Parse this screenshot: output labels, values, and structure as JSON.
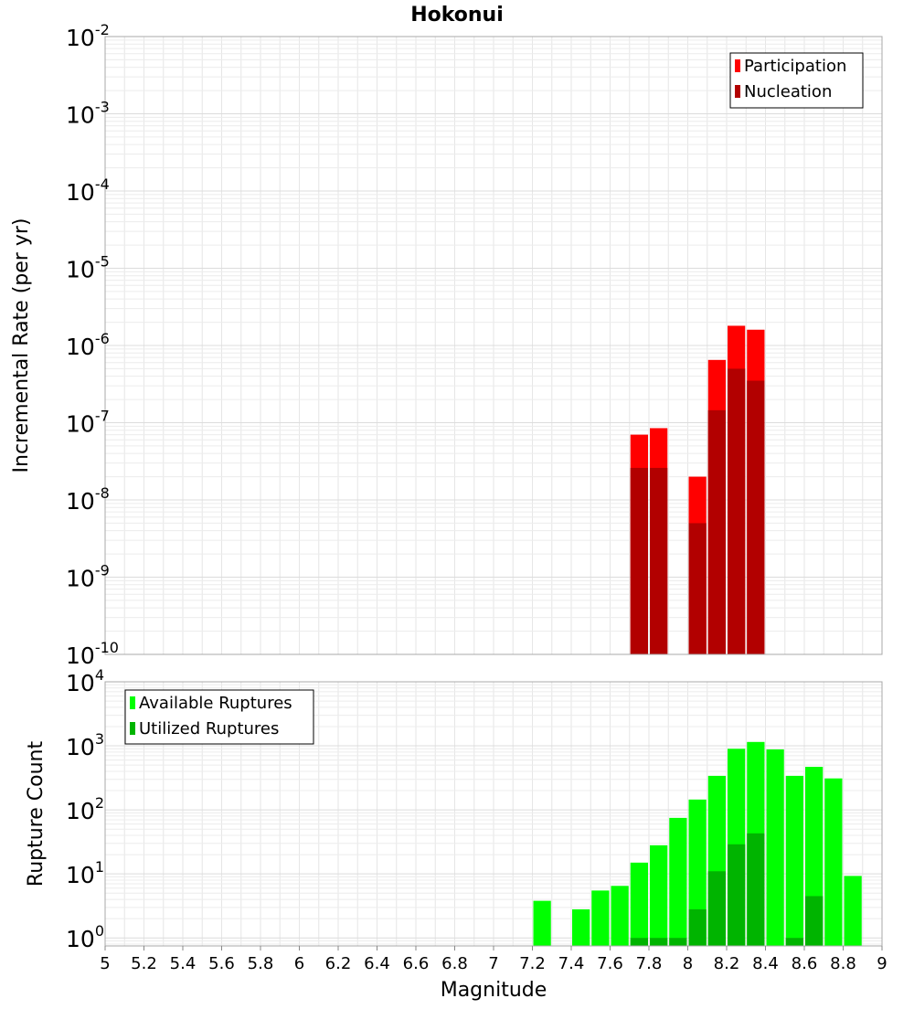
{
  "chart_data": {
    "title": "Hokonui",
    "xlabel": "Magnitude",
    "xlim": [
      5,
      9
    ],
    "x_ticks": [
      "5",
      "5.2",
      "5.4",
      "5.6",
      "5.8",
      "6",
      "6.2",
      "6.4",
      "6.6",
      "6.8",
      "7",
      "7.2",
      "7.4",
      "7.6",
      "7.8",
      "8",
      "8.2",
      "8.4",
      "8.6",
      "8.8",
      "9"
    ],
    "panels": [
      {
        "type": "bar",
        "yscale": "log",
        "ylabel": "Incremental Rate (per yr)",
        "ylim_exponents": [
          -10,
          -2
        ],
        "y_ticks": [
          {
            "base": "10",
            "exp": "-2"
          },
          {
            "base": "10",
            "exp": "-3"
          },
          {
            "base": "10",
            "exp": "-4"
          },
          {
            "base": "10",
            "exp": "-5"
          },
          {
            "base": "10",
            "exp": "-6"
          },
          {
            "base": "10",
            "exp": "-7"
          },
          {
            "base": "10",
            "exp": "-8"
          },
          {
            "base": "10",
            "exp": "-9"
          },
          {
            "base": "10",
            "exp": "-10"
          }
        ],
        "legend": [
          "Participation",
          "Nucleation"
        ],
        "legend_position": "top-right",
        "bin_width": 0.1,
        "series": [
          {
            "name": "Participation",
            "color": "#ff0000",
            "x": [
              7.75,
              7.85,
              8.05,
              8.15,
              8.25,
              8.35
            ],
            "values": [
              7e-08,
              8.5e-08,
              2e-08,
              6.5e-07,
              1.8e-06,
              1.6e-06
            ]
          },
          {
            "name": "Nucleation",
            "color": "#b20000",
            "x": [
              7.75,
              7.85,
              8.05,
              8.15,
              8.25,
              8.35
            ],
            "values": [
              2.6e-08,
              2.6e-08,
              5e-09,
              1.45e-07,
              5e-07,
              3.5e-07
            ]
          }
        ]
      },
      {
        "type": "bar",
        "yscale": "log",
        "ylabel": "Rupture Count",
        "ylim": [
          0.75,
          10000
        ],
        "y_ticks": [
          {
            "base": "10",
            "exp": "4"
          },
          {
            "base": "10",
            "exp": "3"
          },
          {
            "base": "10",
            "exp": "2"
          },
          {
            "base": "10",
            "exp": "1"
          },
          {
            "base": "10",
            "exp": "0"
          }
        ],
        "legend": [
          "Available Ruptures",
          "Utilized Ruptures"
        ],
        "legend_position": "top-left",
        "bin_width": 0.1,
        "series": [
          {
            "name": "Available Ruptures",
            "color": "#00ff00",
            "x": [
              7.25,
              7.45,
              7.55,
              7.65,
              7.75,
              7.85,
              7.95,
              8.05,
              8.15,
              8.25,
              8.35,
              8.45,
              8.55,
              8.65,
              8.75,
              8.85
            ],
            "values": [
              3.8,
              2.8,
              5.5,
              6.5,
              15,
              28,
              75,
              145,
              340,
              900,
              1150,
              880,
              340,
              470,
              310,
              9.3
            ]
          },
          {
            "name": "Utilized Ruptures",
            "color": "#00b400",
            "x": [
              7.75,
              7.85,
              7.95,
              8.05,
              8.15,
              8.25,
              8.35,
              8.55,
              8.65
            ],
            "values": [
              1,
              1,
              1,
              2.8,
              11,
              29,
              43,
              1,
              4.5
            ]
          }
        ]
      }
    ]
  }
}
